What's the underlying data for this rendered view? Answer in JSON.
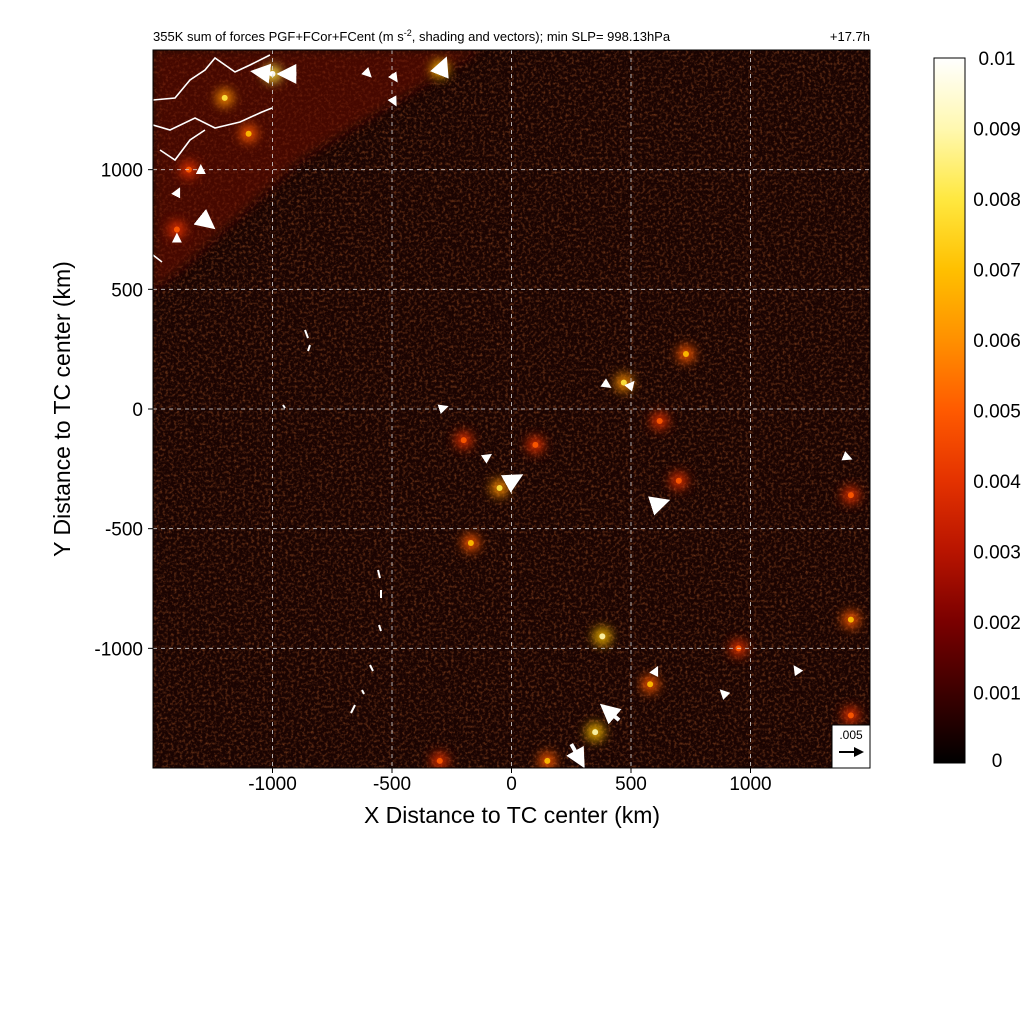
{
  "chart_data": {
    "type": "heatmap",
    "title": "355K sum of forces PGF+FCor+FCent (m s",
    "title_superscript": "-2",
    "title_suffix": ", shading and vectors); min SLP= 998.13hPa",
    "time_label": "+17.7h",
    "xlabel": "X Distance to TC center (km)",
    "ylabel": "Y Distance to TC center (km)",
    "xlim": [
      -1500,
      1500
    ],
    "ylim": [
      -1500,
      1500
    ],
    "xticks": [
      -1000,
      -500,
      0,
      500,
      1000
    ],
    "xtick_labels": [
      "-1000",
      "-500",
      "0",
      "500",
      "1000"
    ],
    "yticks": [
      -1000,
      -500,
      0,
      500,
      1000
    ],
    "ytick_labels": [
      "-1000",
      "-500",
      "0",
      "500",
      "1000"
    ],
    "grid": true,
    "colorbar": {
      "min": 0,
      "max": 0.01,
      "ticks": [
        0,
        0.001,
        0.002,
        0.003,
        0.004,
        0.005,
        0.006,
        0.007,
        0.008,
        0.009,
        0.01
      ],
      "tick_labels": [
        "0",
        "0.001",
        "0.002",
        "0.003",
        "0.004",
        "0.005",
        "0.006",
        "0.007",
        "0.008",
        "0.009",
        "0.01"
      ],
      "colormap": [
        "#000000",
        "#3c0000",
        "#7a0000",
        "#b81400",
        "#e43200",
        "#ff5a00",
        "#ff9000",
        "#ffc000",
        "#ffe840",
        "#fff8b0",
        "#ffffff"
      ]
    },
    "reference_vector": {
      "label": ".005",
      "magnitude": 0.005
    },
    "hotspots": [
      {
        "x": -1200,
        "y": 1300,
        "v": 0.006
      },
      {
        "x": -1000,
        "y": 1400,
        "v": 0.008
      },
      {
        "x": -1100,
        "y": 1150,
        "v": 0.005
      },
      {
        "x": -300,
        "y": 1420,
        "v": 0.007
      },
      {
        "x": -1400,
        "y": 750,
        "v": 0.004
      },
      {
        "x": -1350,
        "y": 1000,
        "v": 0.004
      },
      {
        "x": 730,
        "y": 230,
        "v": 0.005
      },
      {
        "x": 470,
        "y": 110,
        "v": 0.006
      },
      {
        "x": -50,
        "y": -330,
        "v": 0.006
      },
      {
        "x": -200,
        "y": -130,
        "v": 0.004
      },
      {
        "x": 100,
        "y": -150,
        "v": 0.004
      },
      {
        "x": -170,
        "y": -560,
        "v": 0.005
      },
      {
        "x": 380,
        "y": -950,
        "v": 0.007
      },
      {
        "x": 350,
        "y": -1350,
        "v": 0.007
      },
      {
        "x": 580,
        "y": -1150,
        "v": 0.005
      },
      {
        "x": 150,
        "y": -1470,
        "v": 0.005
      },
      {
        "x": -300,
        "y": -1470,
        "v": 0.004
      },
      {
        "x": 1420,
        "y": -880,
        "v": 0.005
      },
      {
        "x": 1420,
        "y": -360,
        "v": 0.004
      },
      {
        "x": 700,
        "y": -300,
        "v": 0.004
      },
      {
        "x": 950,
        "y": -1000,
        "v": 0.004
      },
      {
        "x": 620,
        "y": -50,
        "v": 0.004
      },
      {
        "x": 1420,
        "y": -1280,
        "v": 0.004
      }
    ],
    "vectors": [
      {
        "x": -1000,
        "y": 1400,
        "u": -0.004,
        "v": 0.0005
      },
      {
        "x": -900,
        "y": 1400,
        "u": -0.0035,
        "v": 0.0
      },
      {
        "x": -300,
        "y": 1400,
        "u": 0.0012,
        "v": 0.003
      },
      {
        "x": -500,
        "y": 1400,
        "u": 0.001,
        "v": -0.0015
      },
      {
        "x": -500,
        "y": 1300,
        "u": 0.0008,
        "v": -0.0015
      },
      {
        "x": -600,
        "y": 1400,
        "u": 0.0005,
        "v": -0.0005
      },
      {
        "x": -1300,
        "y": 800,
        "u": 0.0025,
        "v": -0.002
      },
      {
        "x": -1400,
        "y": 700,
        "u": 0.0,
        "v": 0.0015
      },
      {
        "x": -1400,
        "y": 900,
        "u": 0.0005,
        "v": 0.001
      },
      {
        "x": -1300,
        "y": 1000,
        "u": 0.0,
        "v": 0.0008
      },
      {
        "x": 600,
        "y": -400,
        "u": 0.0025,
        "v": 0.0008
      },
      {
        "x": 0,
        "y": -300,
        "u": 0.0018,
        "v": 0.001
      },
      {
        "x": -300,
        "y": 0,
        "u": 0.0015,
        "v": 0.0005
      },
      {
        "x": 250,
        "y": -1400,
        "u": 0.0025,
        "v": -0.0045
      },
      {
        "x": 450,
        "y": -1300,
        "u": -0.0035,
        "v": 0.003
      },
      {
        "x": 900,
        "y": -1200,
        "u": -0.0012,
        "v": 0.0012
      },
      {
        "x": 1200,
        "y": -1100,
        "u": -0.0008,
        "v": 0.0012
      },
      {
        "x": 1400,
        "y": -200,
        "u": 0.001,
        "v": -0.0004
      },
      {
        "x": 600,
        "y": -1100,
        "u": 0.0005,
        "v": 0.001
      },
      {
        "x": 400,
        "y": 100,
        "u": 0.0006,
        "v": -0.0004
      },
      {
        "x": 500,
        "y": 100,
        "u": 0.0005,
        "v": 0.0006
      },
      {
        "x": -100,
        "y": -200,
        "u": 0.0006,
        "v": 0.0004
      }
    ]
  }
}
